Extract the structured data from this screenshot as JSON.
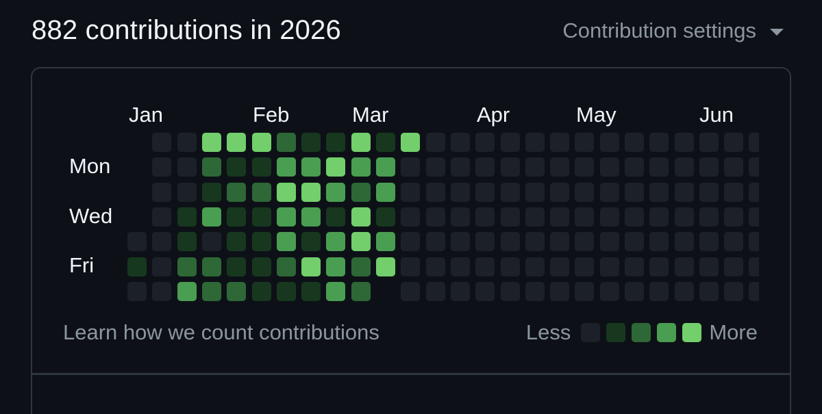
{
  "header": {
    "title": "882 contributions in 2026",
    "settings_label": "Contribution settings",
    "settings_icon": "caret-down-icon"
  },
  "graph": {
    "months": [
      "Jan",
      "Feb",
      "Mar",
      "Apr",
      "May",
      "Jun"
    ],
    "days": [
      "Mon",
      "Wed",
      "Fri"
    ],
    "colors": [
      "#161b22",
      "#0e4429",
      "#006d32",
      "#26a641",
      "#39d353"
    ],
    "render_colors": [
      "#1b2029",
      "#17381f",
      "#2d6836",
      "#4a9e51",
      "#72cf6c"
    ],
    "weeks": [
      [
        -1,
        -1,
        -1,
        -1,
        0,
        1,
        0
      ],
      [
        0,
        0,
        0,
        0,
        0,
        0,
        0
      ],
      [
        0,
        0,
        0,
        1,
        1,
        2,
        3
      ],
      [
        4,
        2,
        1,
        3,
        0,
        2,
        2
      ],
      [
        4,
        1,
        2,
        1,
        1,
        1,
        2
      ],
      [
        4,
        1,
        2,
        1,
        1,
        1,
        1
      ],
      [
        2,
        3,
        4,
        3,
        3,
        2,
        1
      ],
      [
        1,
        3,
        4,
        3,
        1,
        4,
        1
      ],
      [
        1,
        4,
        3,
        1,
        3,
        3,
        3
      ],
      [
        4,
        3,
        2,
        4,
        4,
        2,
        2
      ],
      [
        1,
        3,
        3,
        1,
        3,
        4,
        -1
      ],
      [
        4,
        0,
        0,
        0,
        0,
        0,
        0
      ],
      [
        0,
        0,
        0,
        0,
        0,
        0,
        0
      ],
      [
        0,
        0,
        0,
        0,
        0,
        0,
        0
      ],
      [
        0,
        0,
        0,
        0,
        0,
        0,
        0
      ],
      [
        0,
        0,
        0,
        0,
        0,
        0,
        0
      ],
      [
        0,
        0,
        0,
        0,
        0,
        0,
        0
      ],
      [
        0,
        0,
        0,
        0,
        0,
        0,
        0
      ],
      [
        0,
        0,
        0,
        0,
        0,
        0,
        0
      ],
      [
        0,
        0,
        0,
        0,
        0,
        0,
        0
      ],
      [
        0,
        0,
        0,
        0,
        0,
        0,
        0
      ],
      [
        0,
        0,
        0,
        0,
        0,
        0,
        0
      ],
      [
        0,
        0,
        0,
        0,
        0,
        0,
        0
      ],
      [
        0,
        0,
        0,
        0,
        0,
        0,
        0
      ],
      [
        0,
        0,
        0,
        0,
        0,
        0,
        0
      ],
      [
        0,
        0,
        0,
        0,
        0,
        0,
        0
      ]
    ]
  },
  "footer": {
    "learn_link": "Learn how we count contributions",
    "legend_less": "Less",
    "legend_more": "More"
  }
}
